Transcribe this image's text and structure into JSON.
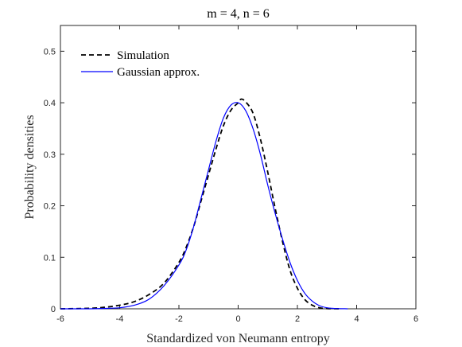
{
  "chart_data": {
    "type": "line",
    "title": "m = 4, n = 6",
    "xlabel": "Standardized von Neumann entropy",
    "ylabel": "Probability densities",
    "xlim": [
      -6,
      6
    ],
    "ylim": [
      0,
      0.55
    ],
    "xticks": [
      -6,
      -4,
      -2,
      0,
      2,
      4,
      6
    ],
    "yticks": [
      0,
      0.1,
      0.2,
      0.3,
      0.4,
      0.5
    ],
    "xtick_labels": [
      "-6",
      "-4",
      "-2",
      "0",
      "2",
      "4",
      "6"
    ],
    "ytick_labels": [
      "0",
      "0.1",
      "0.2",
      "0.3",
      "0.4",
      "0.5"
    ],
    "grid": false,
    "legend_position": "top-left",
    "series": [
      {
        "name": "Simulation",
        "style": "dashed",
        "color": "#000000",
        "x": [
          -6,
          -5,
          -4.5,
          -4,
          -3.5,
          -3,
          -2.5,
          -2,
          -1.75,
          -1.5,
          -1.25,
          -1,
          -0.75,
          -0.5,
          -0.25,
          0,
          0.1,
          0.25,
          0.5,
          0.75,
          1,
          1.25,
          1.5,
          1.75,
          2,
          2.25,
          2.5,
          2.75,
          3,
          3.5
        ],
        "y": [
          0.0,
          0.001,
          0.003,
          0.007,
          0.014,
          0.028,
          0.05,
          0.09,
          0.12,
          0.16,
          0.21,
          0.26,
          0.31,
          0.355,
          0.385,
          0.4,
          0.407,
          0.402,
          0.38,
          0.33,
          0.265,
          0.195,
          0.13,
          0.075,
          0.04,
          0.018,
          0.007,
          0.002,
          0.0005,
          0.0
        ]
      },
      {
        "name": "Gaussian approx.",
        "style": "solid",
        "color": "#0000ff",
        "x": [
          -6,
          -5,
          -4.5,
          -4,
          -3.5,
          -3,
          -2.5,
          -2,
          -1.75,
          -1.5,
          -1.25,
          -1,
          -0.75,
          -0.5,
          -0.25,
          0,
          0.25,
          0.5,
          0.75,
          1,
          1.25,
          1.5,
          1.75,
          2,
          2.25,
          2.5,
          2.75,
          3,
          3.25,
          3.7
        ],
        "y": [
          0.0,
          0.0,
          0.0008,
          0.002,
          0.007,
          0.019,
          0.045,
          0.085,
          0.115,
          0.16,
          0.215,
          0.27,
          0.325,
          0.37,
          0.395,
          0.4,
          0.385,
          0.35,
          0.3,
          0.24,
          0.185,
          0.135,
          0.09,
          0.055,
          0.03,
          0.015,
          0.006,
          0.002,
          0.0007,
          0.0
        ]
      }
    ]
  }
}
